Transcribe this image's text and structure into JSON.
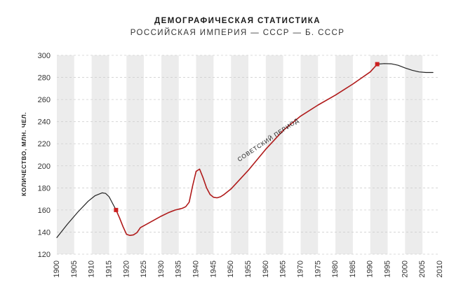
{
  "chart_data": {
    "type": "line",
    "title": "ДЕМОГРАФИЧЕСКАЯ СТАТИСТИКА",
    "subtitle": "РОССИЙСКАЯ ИМПЕРИЯ — СССР — Б. СССР",
    "xlabel": "",
    "ylabel": "КОЛИЧЕСТВО, МЛН. ЧЕЛ.",
    "xlim": [
      1900,
      2010
    ],
    "ylim": [
      120,
      300
    ],
    "xticks": [
      1900,
      1905,
      1910,
      1915,
      1920,
      1925,
      1930,
      1935,
      1940,
      1945,
      1950,
      1955,
      1960,
      1965,
      1970,
      1975,
      1980,
      1985,
      1990,
      1995,
      2000,
      2005,
      2010
    ],
    "yticks": [
      120,
      140,
      160,
      180,
      200,
      220,
      240,
      260,
      280,
      300
    ],
    "grid": true,
    "shaded_bands": [
      [
        1900,
        1905
      ],
      [
        1910,
        1915
      ],
      [
        1920,
        1925
      ],
      [
        1930,
        1935
      ],
      [
        1940,
        1945
      ],
      [
        1950,
        1955
      ],
      [
        1960,
        1965
      ],
      [
        1970,
        1975
      ],
      [
        1980,
        1985
      ],
      [
        1990,
        1995
      ],
      [
        2000,
        2005
      ]
    ],
    "annotation": "СОВЕТСКИЙ ПЕРИОД",
    "colors": {
      "imperial": "#222222",
      "soviet": "#b01a1a",
      "post_soviet": "#222222",
      "marker": "#cc1f1f",
      "band": "#ececec"
    },
    "series": [
      {
        "segment": "imperial",
        "x": [
          1900,
          1903,
          1906,
          1909,
          1911,
          1913,
          1914,
          1915,
          1916,
          1917
        ],
        "y": [
          135,
          147,
          158,
          168,
          173,
          175.5,
          175,
          172,
          166,
          160
        ]
      },
      {
        "segment": "soviet",
        "x": [
          1917,
          1918,
          1919,
          1920,
          1921,
          1922,
          1923,
          1924,
          1926,
          1928,
          1930,
          1932,
          1934,
          1936,
          1937,
          1938,
          1939,
          1940,
          1941,
          1942,
          1943,
          1944,
          1945,
          1946,
          1947,
          1948,
          1950,
          1955,
          1960,
          1965,
          1970,
          1975,
          1980,
          1985,
          1990,
          1992
        ],
        "y": [
          160,
          153,
          145,
          138,
          137,
          137.5,
          139.5,
          144,
          147.5,
          151,
          154.5,
          157.5,
          160,
          161.5,
          163,
          167,
          182,
          195,
          197,
          189,
          180,
          174,
          171.5,
          171,
          172,
          174,
          179,
          196,
          215,
          232,
          245,
          255,
          264,
          274,
          285,
          292
        ]
      },
      {
        "segment": "post_soviet",
        "x": [
          1992,
          1994,
          1996,
          1998,
          2000,
          2002,
          2004,
          2006,
          2008
        ],
        "y": [
          292,
          292.5,
          292.3,
          291,
          288.5,
          286.5,
          285,
          284.5,
          284.5
        ]
      }
    ],
    "markers": [
      {
        "x": 1917,
        "y": 160
      },
      {
        "x": 1992,
        "y": 292
      }
    ]
  }
}
